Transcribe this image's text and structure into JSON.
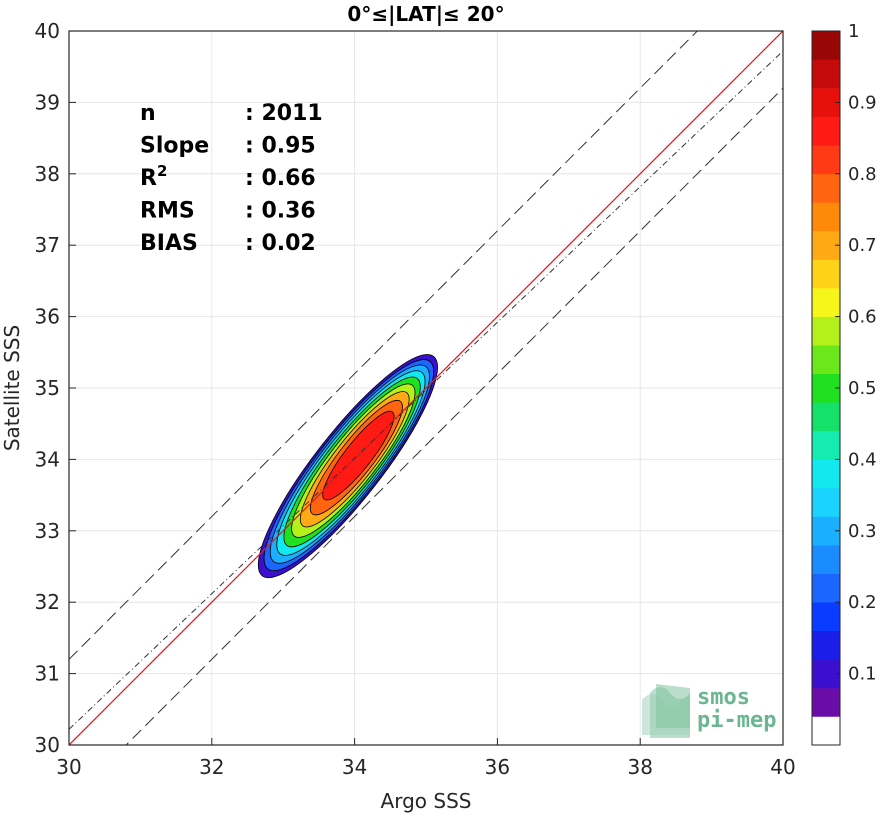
{
  "chart_data": {
    "type": "heatmap",
    "title": "0°≤|LAT|≤ 20°",
    "xlabel": "Argo SSS",
    "ylabel": "Satellite SSS",
    "xlim": [
      30,
      40
    ],
    "ylim": [
      30,
      40
    ],
    "x_ticks": [
      30,
      32,
      34,
      36,
      38,
      40
    ],
    "y_ticks": [
      30,
      31,
      32,
      33,
      34,
      35,
      36,
      37,
      38,
      39,
      40
    ],
    "grid": true,
    "stats": [
      {
        "label": "n",
        "value": ": 2011"
      },
      {
        "label": "Slope",
        "value": ": 0.95"
      },
      {
        "label": "R",
        "sup": "2",
        "value": ": 0.66"
      },
      {
        "label": "RMS",
        "value": ": 0.36"
      },
      {
        "label": "BIAS",
        "value": ": 0.02"
      }
    ],
    "lines": [
      {
        "kind": "identity",
        "slope": 1,
        "intercept": 0,
        "color": "#e41a1c",
        "style": "solid"
      },
      {
        "kind": "regression",
        "slope": 0.95,
        "intercept": 1.72,
        "color": "#333333",
        "style": "dash-dot"
      },
      {
        "kind": "upper-bound",
        "slope": 1,
        "intercept": 1.2,
        "color": "#333333",
        "style": "dashed"
      },
      {
        "kind": "lower-bound",
        "slope": 1,
        "intercept": -0.8,
        "color": "#333333",
        "style": "dashed"
      }
    ],
    "density_peak": {
      "x": 33.9,
      "y": 33.9
    },
    "contour_levels": [
      0.05,
      0.15,
      0.25,
      0.35,
      0.45,
      0.55,
      0.65,
      0.75,
      0.85
    ],
    "colorbar": {
      "min": 0,
      "max": 1,
      "ticks": [
        0.1,
        0.2,
        0.3,
        0.4,
        0.5,
        0.6,
        0.7,
        0.8,
        0.9,
        1
      ],
      "tick_labels": [
        "0.1",
        "0.2",
        "0.3",
        "0.4",
        "0.5",
        "0.6",
        "0.7",
        "0.8",
        "0.9",
        "1"
      ],
      "colors": [
        "#ffffff",
        "#6a0da8",
        "#3b0fcf",
        "#1a1ee8",
        "#0a3cff",
        "#1a66ff",
        "#1a8cff",
        "#1ab0ff",
        "#1ad4ff",
        "#12e8ee",
        "#14ecb0",
        "#14e06a",
        "#20e020",
        "#6ae81a",
        "#b4f01a",
        "#f6f61a",
        "#ffd21a",
        "#ffaa14",
        "#ff8a0a",
        "#ff6410",
        "#ff3a14",
        "#ff1a14",
        "#e8100a",
        "#c40a0a",
        "#990606"
      ]
    },
    "logo_text": [
      "smos",
      "pi-mep"
    ]
  }
}
